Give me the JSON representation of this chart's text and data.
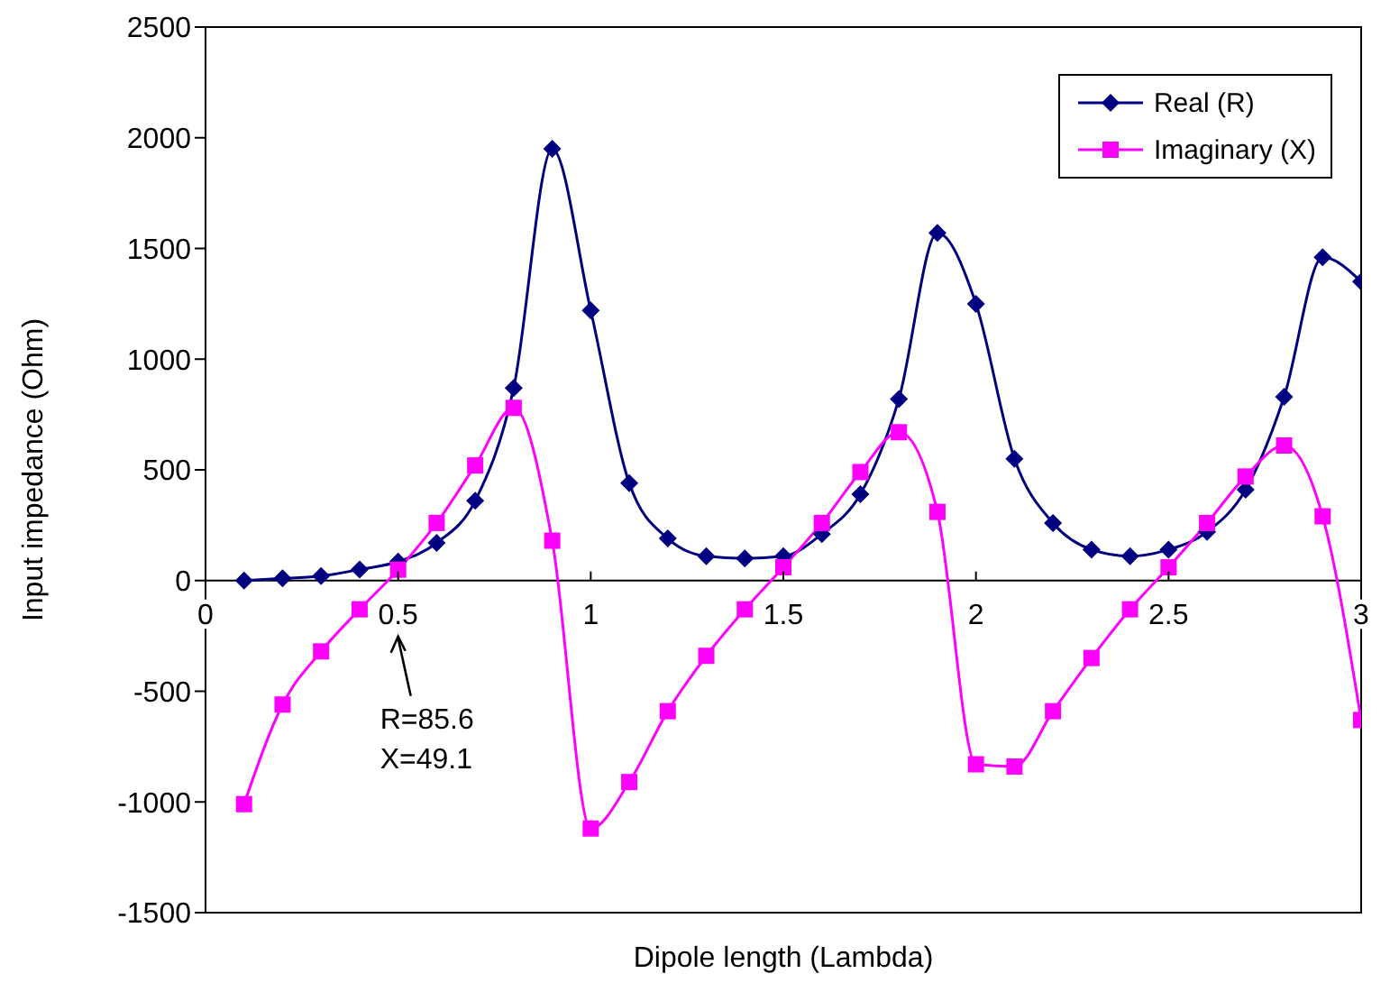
{
  "chart_data": {
    "type": "line",
    "xlabel": "Dipole length (Lambda)",
    "ylabel": "Input impedance (Ohm)",
    "x": [
      0.1,
      0.2,
      0.3,
      0.4,
      0.5,
      0.6,
      0.7,
      0.8,
      0.9,
      1.0,
      1.1,
      1.2,
      1.3,
      1.4,
      1.5,
      1.6,
      1.7,
      1.8,
      1.9,
      2.0,
      2.1,
      2.2,
      2.3,
      2.4,
      2.5,
      2.6,
      2.7,
      2.8,
      2.9,
      3.0
    ],
    "series": [
      {
        "name": "Real (R)",
        "color": "#000080",
        "marker": "diamond",
        "values": [
          0,
          10,
          20,
          50,
          85.6,
          170,
          360,
          870,
          1950,
          1220,
          440,
          190,
          110,
          100,
          110,
          210,
          390,
          820,
          1570,
          1250,
          550,
          260,
          140,
          110,
          140,
          220,
          410,
          830,
          1460,
          1350
        ]
      },
      {
        "name": "Imaginary (X)",
        "color": "#ff00ff",
        "marker": "square",
        "values": [
          -1010,
          -560,
          -320,
          -130,
          49.1,
          260,
          520,
          780,
          180,
          -1120,
          -910,
          -590,
          -340,
          -130,
          60,
          260,
          490,
          670,
          310,
          -830,
          -840,
          -590,
          -350,
          -130,
          60,
          260,
          470,
          610,
          290,
          -630
        ]
      }
    ],
    "xlim": [
      0,
      3
    ],
    "xticks": [
      0,
      0.5,
      1,
      1.5,
      2,
      2.5,
      3
    ],
    "ylim": [
      -1500,
      2500
    ],
    "yticks": [
      -1500,
      -1000,
      -500,
      0,
      500,
      1000,
      1500,
      2000,
      2500
    ],
    "annotations": [
      "R=85.6",
      "X=49.1"
    ],
    "legend": "top right",
    "grid": false
  }
}
